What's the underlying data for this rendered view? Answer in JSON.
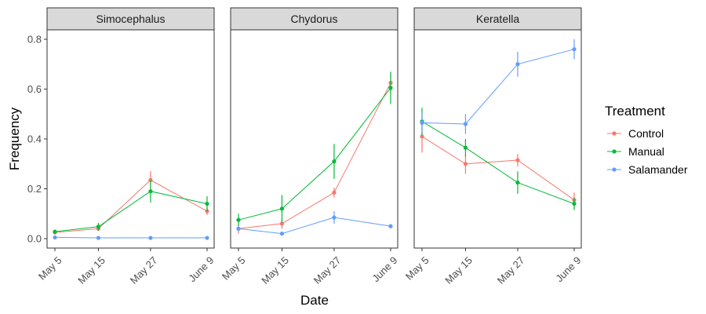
{
  "chart_data": {
    "type": "line",
    "xlabel": "Date",
    "ylabel": "Frequency",
    "categories": [
      "May 5",
      "May 15",
      "May 27",
      "June 9"
    ],
    "x_days": [
      5,
      15,
      27,
      40
    ],
    "ylim": [
      0,
      0.8
    ],
    "y_ticks": [
      "0.0",
      "0.2",
      "0.4",
      "0.6",
      "0.8"
    ],
    "grid": false,
    "legend": {
      "title": "Treatment",
      "position": "right",
      "entries": [
        {
          "name": "Control",
          "color": "#F8766D"
        },
        {
          "name": "Manual",
          "color": "#00BA38"
        },
        {
          "name": "Salamander",
          "color": "#619CFF"
        }
      ]
    },
    "panels": [
      {
        "title": "Simocephalus",
        "series": [
          {
            "name": "Control",
            "values": [
              0.025,
              0.04,
              0.235,
              0.11
            ],
            "errors": [
              0.008,
              0.01,
              0.035,
              0.015
            ]
          },
          {
            "name": "Manual",
            "values": [
              0.028,
              0.048,
              0.19,
              0.14
            ],
            "errors": [
              0.008,
              0.015,
              0.045,
              0.03
            ]
          },
          {
            "name": "Salamander",
            "values": [
              0.005,
              0.003,
              0.003,
              0.003
            ],
            "errors": [
              0.002,
              0.001,
              0.001,
              0.001
            ]
          }
        ]
      },
      {
        "title": "Chydorus",
        "series": [
          {
            "name": "Control",
            "values": [
              0.04,
              0.06,
              0.185,
              0.625
            ],
            "errors": [
              0.02,
              0.02,
              0.02,
              0.04
            ]
          },
          {
            "name": "Manual",
            "values": [
              0.075,
              0.12,
              0.31,
              0.605
            ],
            "errors": [
              0.025,
              0.055,
              0.07,
              0.065
            ]
          },
          {
            "name": "Salamander",
            "values": [
              0.04,
              0.02,
              0.085,
              0.05
            ],
            "errors": [
              0.01,
              0.005,
              0.025,
              0.008
            ]
          }
        ]
      },
      {
        "title": "Keratella",
        "series": [
          {
            "name": "Control",
            "values": [
              0.41,
              0.3,
              0.315,
              0.155
            ],
            "errors": [
              0.065,
              0.04,
              0.025,
              0.03
            ]
          },
          {
            "name": "Manual",
            "values": [
              0.47,
              0.365,
              0.225,
              0.14
            ],
            "errors": [
              0.055,
              0.035,
              0.045,
              0.025
            ]
          },
          {
            "name": "Salamander",
            "values": [
              0.465,
              0.46,
              0.7,
              0.76
            ],
            "errors": [
              0.04,
              0.04,
              0.05,
              0.04
            ]
          }
        ]
      }
    ]
  }
}
